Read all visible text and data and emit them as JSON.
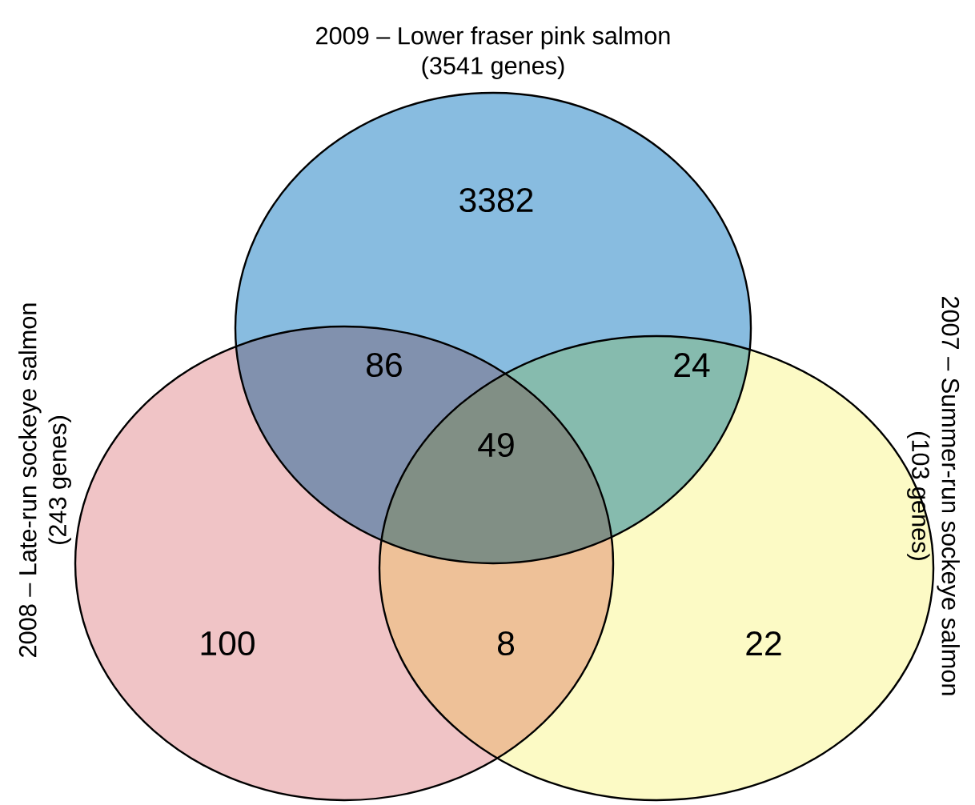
{
  "chart_data": {
    "type": "other",
    "annotations": [
      "2009 – Lower fraser pink salmon",
      "(3541 genes)",
      "2008 – Late-run sockeye salmon",
      "(243 genes)",
      "2007 – Summer-run sockeye salmon",
      "(103 genes)"
    ],
    "categories": [
      null,
      null,
      null,
      null,
      null,
      null,
      null
    ],
    "values": [
      3382,
      86,
      24,
      49,
      100,
      8,
      22
    ],
    "colors": [
      "#88bce0",
      "#8191ae",
      "#86bbae",
      "#818f85",
      "#f0c4c6",
      "#eec198",
      "#fcfac5"
    ],
    "data_labels": true
  }
}
